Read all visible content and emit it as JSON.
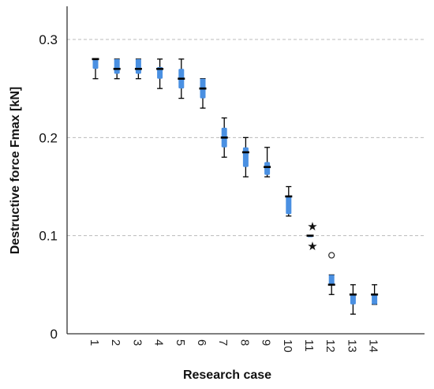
{
  "chart_data": {
    "type": "boxplot",
    "xlabel": "Research case",
    "ylabel": "Destructive force Fmax [kN]",
    "ylim": [
      0,
      0.3
    ],
    "y_ticks": [
      "0",
      "0.1",
      "0.2",
      "0.3"
    ],
    "y_tick_values": [
      0,
      0.1,
      0.2,
      0.3
    ],
    "grid": "horizontal dashed at 0.1, 0.2, 0.3",
    "categories": [
      "1",
      "2",
      "3",
      "4",
      "5",
      "6",
      "7",
      "8",
      "9",
      "10",
      "11",
      "12",
      "13",
      "14"
    ],
    "boxes": [
      {
        "min": 0.26,
        "q1": 0.27,
        "median": 0.28,
        "q3": 0.28,
        "max": 0.28,
        "outliers": [],
        "extremes": []
      },
      {
        "min": 0.26,
        "q1": 0.265,
        "median": 0.27,
        "q3": 0.28,
        "max": 0.28,
        "outliers": [],
        "extremes": []
      },
      {
        "min": 0.26,
        "q1": 0.265,
        "median": 0.27,
        "q3": 0.28,
        "max": 0.28,
        "outliers": [],
        "extremes": []
      },
      {
        "min": 0.25,
        "q1": 0.26,
        "median": 0.27,
        "q3": 0.272,
        "max": 0.28,
        "outliers": [],
        "extremes": []
      },
      {
        "min": 0.24,
        "q1": 0.25,
        "median": 0.26,
        "q3": 0.27,
        "max": 0.28,
        "outliers": [],
        "extremes": []
      },
      {
        "min": 0.23,
        "q1": 0.24,
        "median": 0.25,
        "q3": 0.26,
        "max": 0.26,
        "outliers": [],
        "extremes": []
      },
      {
        "min": 0.18,
        "q1": 0.19,
        "median": 0.2,
        "q3": 0.21,
        "max": 0.22,
        "outliers": [],
        "extremes": []
      },
      {
        "min": 0.16,
        "q1": 0.17,
        "median": 0.185,
        "q3": 0.19,
        "max": 0.2,
        "outliers": [],
        "extremes": []
      },
      {
        "min": 0.16,
        "q1": 0.162,
        "median": 0.17,
        "q3": 0.175,
        "max": 0.19,
        "outliers": [],
        "extremes": []
      },
      {
        "min": 0.12,
        "q1": 0.122,
        "median": 0.14,
        "q3": 0.14,
        "max": 0.15,
        "outliers": [],
        "extremes": []
      },
      {
        "min": 0.1,
        "q1": 0.1,
        "median": 0.1,
        "q3": 0.1,
        "max": 0.1,
        "outliers": [],
        "extremes": [
          0.11,
          0.09
        ]
      },
      {
        "min": 0.04,
        "q1": 0.05,
        "median": 0.05,
        "q3": 0.06,
        "max": 0.06,
        "outliers": [
          0.08
        ],
        "extremes": []
      },
      {
        "min": 0.02,
        "q1": 0.03,
        "median": 0.04,
        "q3": 0.04,
        "max": 0.05,
        "outliers": [],
        "extremes": []
      },
      {
        "min": 0.03,
        "q1": 0.03,
        "median": 0.04,
        "q3": 0.04,
        "max": 0.05,
        "outliers": [],
        "extremes": []
      }
    ],
    "colors": {
      "box": "#4a90e2",
      "median": "#000000",
      "whisker": "#000000",
      "grid": "#bbbbbb",
      "axis": "#333333"
    }
  }
}
